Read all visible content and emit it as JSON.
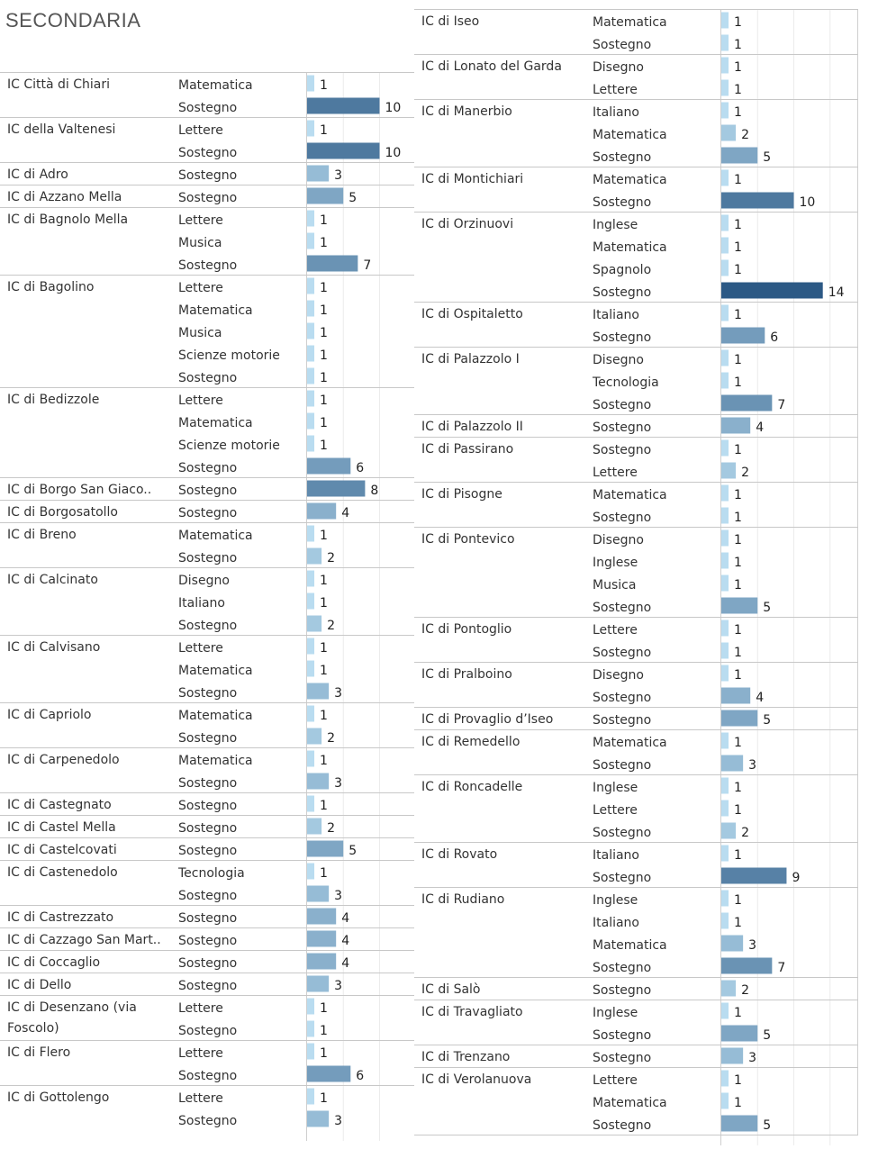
{
  "title": "SECONDARIA",
  "chart_data": {
    "type": "bar",
    "orientation": "horizontal",
    "title": "SECONDARIA",
    "xlabel": "",
    "ylabel": "",
    "xlim": [
      0,
      15
    ],
    "grid": true,
    "color_scale": {
      "low": "#b9dcf0",
      "high": "#2c5985"
    },
    "panels": [
      {
        "groups": [
          {
            "school": "IC Città di Chiari",
            "rows": [
              {
                "subject": "Matematica",
                "value": 1
              },
              {
                "subject": "Sostegno",
                "value": 10
              }
            ]
          },
          {
            "school": "IC della Valtenesi",
            "rows": [
              {
                "subject": "Lettere",
                "value": 1
              },
              {
                "subject": "Sostegno",
                "value": 10
              }
            ]
          },
          {
            "school": "IC di Adro",
            "rows": [
              {
                "subject": "Sostegno",
                "value": 3
              }
            ]
          },
          {
            "school": "IC di Azzano Mella",
            "rows": [
              {
                "subject": "Sostegno",
                "value": 5
              }
            ]
          },
          {
            "school": "IC di Bagnolo Mella",
            "rows": [
              {
                "subject": "Lettere",
                "value": 1
              },
              {
                "subject": "Musica",
                "value": 1
              },
              {
                "subject": "Sostegno",
                "value": 7
              }
            ]
          },
          {
            "school": "IC di Bagolino",
            "rows": [
              {
                "subject": "Lettere",
                "value": 1
              },
              {
                "subject": "Matematica",
                "value": 1
              },
              {
                "subject": "Musica",
                "value": 1
              },
              {
                "subject": "Scienze motorie",
                "value": 1
              },
              {
                "subject": "Sostegno",
                "value": 1
              }
            ]
          },
          {
            "school": "IC di Bedizzole",
            "rows": [
              {
                "subject": "Lettere",
                "value": 1
              },
              {
                "subject": "Matematica",
                "value": 1
              },
              {
                "subject": "Scienze motorie",
                "value": 1
              },
              {
                "subject": "Sostegno",
                "value": 6
              }
            ]
          },
          {
            "school": "IC di Borgo San Giaco..",
            "rows": [
              {
                "subject": "Sostegno",
                "value": 8
              }
            ]
          },
          {
            "school": "IC di Borgosatollo",
            "rows": [
              {
                "subject": "Sostegno",
                "value": 4
              }
            ]
          },
          {
            "school": "IC di Breno",
            "rows": [
              {
                "subject": "Matematica",
                "value": 1
              },
              {
                "subject": "Sostegno",
                "value": 2
              }
            ]
          },
          {
            "school": "IC di Calcinato",
            "rows": [
              {
                "subject": "Disegno",
                "value": 1
              },
              {
                "subject": "Italiano",
                "value": 1
              },
              {
                "subject": "Sostegno",
                "value": 2
              }
            ]
          },
          {
            "school": "IC di Calvisano",
            "rows": [
              {
                "subject": "Lettere",
                "value": 1
              },
              {
                "subject": "Matematica",
                "value": 1
              },
              {
                "subject": "Sostegno",
                "value": 3
              }
            ]
          },
          {
            "school": "IC di Capriolo",
            "rows": [
              {
                "subject": "Matematica",
                "value": 1
              },
              {
                "subject": "Sostegno",
                "value": 2
              }
            ]
          },
          {
            "school": "IC di Carpenedolo",
            "rows": [
              {
                "subject": "Matematica",
                "value": 1
              },
              {
                "subject": "Sostegno",
                "value": 3
              }
            ]
          },
          {
            "school": "IC di Castegnato",
            "rows": [
              {
                "subject": "Sostegno",
                "value": 1
              }
            ]
          },
          {
            "school": "IC di Castel Mella",
            "rows": [
              {
                "subject": "Sostegno",
                "value": 2
              }
            ]
          },
          {
            "school": "IC di Castelcovati",
            "rows": [
              {
                "subject": "Sostegno",
                "value": 5
              }
            ]
          },
          {
            "school": "IC di Castenedolo",
            "rows": [
              {
                "subject": "Tecnologia",
                "value": 1
              },
              {
                "subject": "Sostegno",
                "value": 3
              }
            ]
          },
          {
            "school": "IC di Castrezzato",
            "rows": [
              {
                "subject": "Sostegno",
                "value": 4
              }
            ]
          },
          {
            "school": "IC di Cazzago San Mart..",
            "rows": [
              {
                "subject": "Sostegno",
                "value": 4
              }
            ]
          },
          {
            "school": "IC di Coccaglio",
            "rows": [
              {
                "subject": "Sostegno",
                "value": 4
              }
            ]
          },
          {
            "school": "IC di Dello",
            "rows": [
              {
                "subject": "Sostegno",
                "value": 3
              }
            ]
          },
          {
            "school": "IC di Desenzano (via Foscolo)",
            "rows": [
              {
                "subject": "Lettere",
                "value": 1
              },
              {
                "subject": "Sostegno",
                "value": 1
              }
            ]
          },
          {
            "school": "IC di Flero",
            "rows": [
              {
                "subject": "Lettere",
                "value": 1
              },
              {
                "subject": "Sostegno",
                "value": 6
              }
            ]
          },
          {
            "school": "IC di Gottolengo",
            "rows": [
              {
                "subject": "Lettere",
                "value": 1
              },
              {
                "subject": "Sostegno",
                "value": 3
              }
            ]
          }
        ]
      },
      {
        "groups": [
          {
            "school": "IC di Iseo",
            "rows": [
              {
                "subject": "Matematica",
                "value": 1
              },
              {
                "subject": "Sostegno",
                "value": 1
              }
            ]
          },
          {
            "school": "IC di Lonato del Garda",
            "rows": [
              {
                "subject": "Disegno",
                "value": 1
              },
              {
                "subject": "Lettere",
                "value": 1
              }
            ]
          },
          {
            "school": "IC di Manerbio",
            "rows": [
              {
                "subject": "Italiano",
                "value": 1
              },
              {
                "subject": "Matematica",
                "value": 2
              },
              {
                "subject": "Sostegno",
                "value": 5
              }
            ]
          },
          {
            "school": "IC di Montichiari",
            "rows": [
              {
                "subject": "Matematica",
                "value": 1
              },
              {
                "subject": "Sostegno",
                "value": 10
              }
            ]
          },
          {
            "school": "IC di Orzinuovi",
            "rows": [
              {
                "subject": "Inglese",
                "value": 1
              },
              {
                "subject": "Matematica",
                "value": 1
              },
              {
                "subject": "Spagnolo",
                "value": 1
              },
              {
                "subject": "Sostegno",
                "value": 14
              }
            ]
          },
          {
            "school": "IC di Ospitaletto",
            "rows": [
              {
                "subject": "Italiano",
                "value": 1
              },
              {
                "subject": "Sostegno",
                "value": 6
              }
            ]
          },
          {
            "school": "IC di Palazzolo I",
            "rows": [
              {
                "subject": "Disegno",
                "value": 1
              },
              {
                "subject": "Tecnologia",
                "value": 1
              },
              {
                "subject": "Sostegno",
                "value": 7
              }
            ]
          },
          {
            "school": "IC di Palazzolo  II",
            "rows": [
              {
                "subject": "Sostegno",
                "value": 4
              }
            ]
          },
          {
            "school": "IC di Passirano",
            "rows": [
              {
                "subject": "Sostegno",
                "value": 1
              },
              {
                "subject": "Lettere",
                "value": 2
              }
            ]
          },
          {
            "school": "IC di Pisogne",
            "rows": [
              {
                "subject": "Matematica",
                "value": 1
              },
              {
                "subject": "Sostegno",
                "value": 1
              }
            ]
          },
          {
            "school": "IC di Pontevico",
            "rows": [
              {
                "subject": "Disegno",
                "value": 1
              },
              {
                "subject": "Inglese",
                "value": 1
              },
              {
                "subject": "Musica",
                "value": 1
              },
              {
                "subject": "Sostegno",
                "value": 5
              }
            ]
          },
          {
            "school": "IC di Pontoglio",
            "rows": [
              {
                "subject": "Lettere",
                "value": 1
              },
              {
                "subject": "Sostegno",
                "value": 1
              }
            ]
          },
          {
            "school": "IC di Pralboino",
            "rows": [
              {
                "subject": "Disegno",
                "value": 1
              },
              {
                "subject": "Sostegno",
                "value": 4
              }
            ]
          },
          {
            "school": "IC di Provaglio d’Iseo",
            "rows": [
              {
                "subject": "Sostegno",
                "value": 5
              }
            ]
          },
          {
            "school": "IC di Remedello",
            "rows": [
              {
                "subject": "Matematica",
                "value": 1
              },
              {
                "subject": "Sostegno",
                "value": 3
              }
            ]
          },
          {
            "school": "IC di Roncadelle",
            "rows": [
              {
                "subject": "Inglese",
                "value": 1
              },
              {
                "subject": "Lettere",
                "value": 1
              },
              {
                "subject": "Sostegno",
                "value": 2
              }
            ]
          },
          {
            "school": "IC di Rovato",
            "rows": [
              {
                "subject": "Italiano",
                "value": 1
              },
              {
                "subject": "Sostegno",
                "value": 9
              }
            ]
          },
          {
            "school": "IC di Rudiano",
            "rows": [
              {
                "subject": "Inglese",
                "value": 1
              },
              {
                "subject": "Italiano",
                "value": 1
              },
              {
                "subject": "Matematica",
                "value": 3
              },
              {
                "subject": "Sostegno",
                "value": 7
              }
            ]
          },
          {
            "school": "IC di Salò",
            "rows": [
              {
                "subject": "Sostegno",
                "value": 2
              }
            ]
          },
          {
            "school": "IC di Travagliato",
            "rows": [
              {
                "subject": "Inglese",
                "value": 1
              },
              {
                "subject": "Sostegno",
                "value": 5
              }
            ]
          },
          {
            "school": "IC di Trenzano",
            "rows": [
              {
                "subject": "Sostegno",
                "value": 3
              }
            ]
          },
          {
            "school": "IC di Verolanuova",
            "rows": [
              {
                "subject": "Lettere",
                "value": 1
              },
              {
                "subject": "Matematica",
                "value": 1
              },
              {
                "subject": "Sostegno",
                "value": 5
              }
            ]
          }
        ]
      }
    ]
  }
}
